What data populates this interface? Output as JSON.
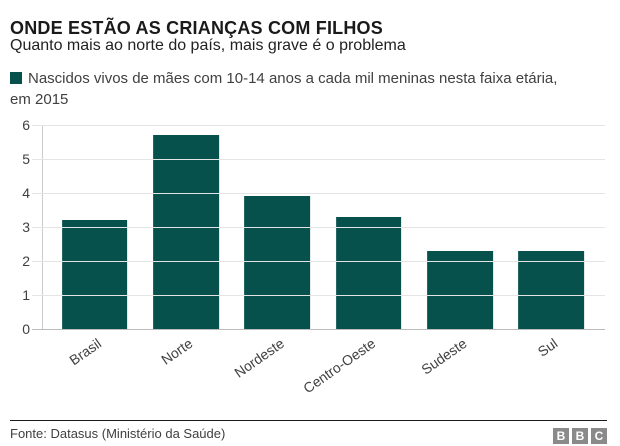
{
  "header": {
    "title": "ONDE ESTÃO AS CRIANÇAS COM FILHOS",
    "subtitle": "Quanto mais ao norte do país, mais grave é o problema"
  },
  "legend": {
    "label": "Nascidos vivos de mães com 10-14 anos a cada mil meninas nesta faixa etária, em 2015"
  },
  "chart_data": {
    "type": "bar",
    "categories": [
      "Brasil",
      "Norte",
      "Nordeste",
      "Centro-Oeste",
      "Sudeste",
      "Sul"
    ],
    "values": [
      3.2,
      5.7,
      3.9,
      3.3,
      2.3,
      2.3
    ],
    "title": "ONDE ESTÃO AS CRIANÇAS COM FILHOS",
    "subtitle": "Quanto mais ao norte do país, mais grave é o problema",
    "legend_label": "Nascidos vivos de mães com 10-14 anos a cada mil meninas nesta faixa etária, em 2015",
    "xlabel": "",
    "ylabel": "",
    "ylim": [
      0,
      6
    ],
    "yticks": [
      0,
      1,
      2,
      3,
      4,
      5,
      6
    ],
    "grid": true,
    "legend_position": "top-left",
    "bar_color": "#07514d"
  },
  "footer": {
    "source": "Fonte: Datasus (Ministério da Saúde)",
    "logo_letters": [
      "B",
      "B",
      "C"
    ]
  },
  "colors": {
    "teal": "#07514d",
    "grid": "#e4e4e4",
    "baseline": "#bbbbbb",
    "axis": "#cccccc",
    "text": "#404040",
    "bbc_gray": "#8a8a8a"
  }
}
